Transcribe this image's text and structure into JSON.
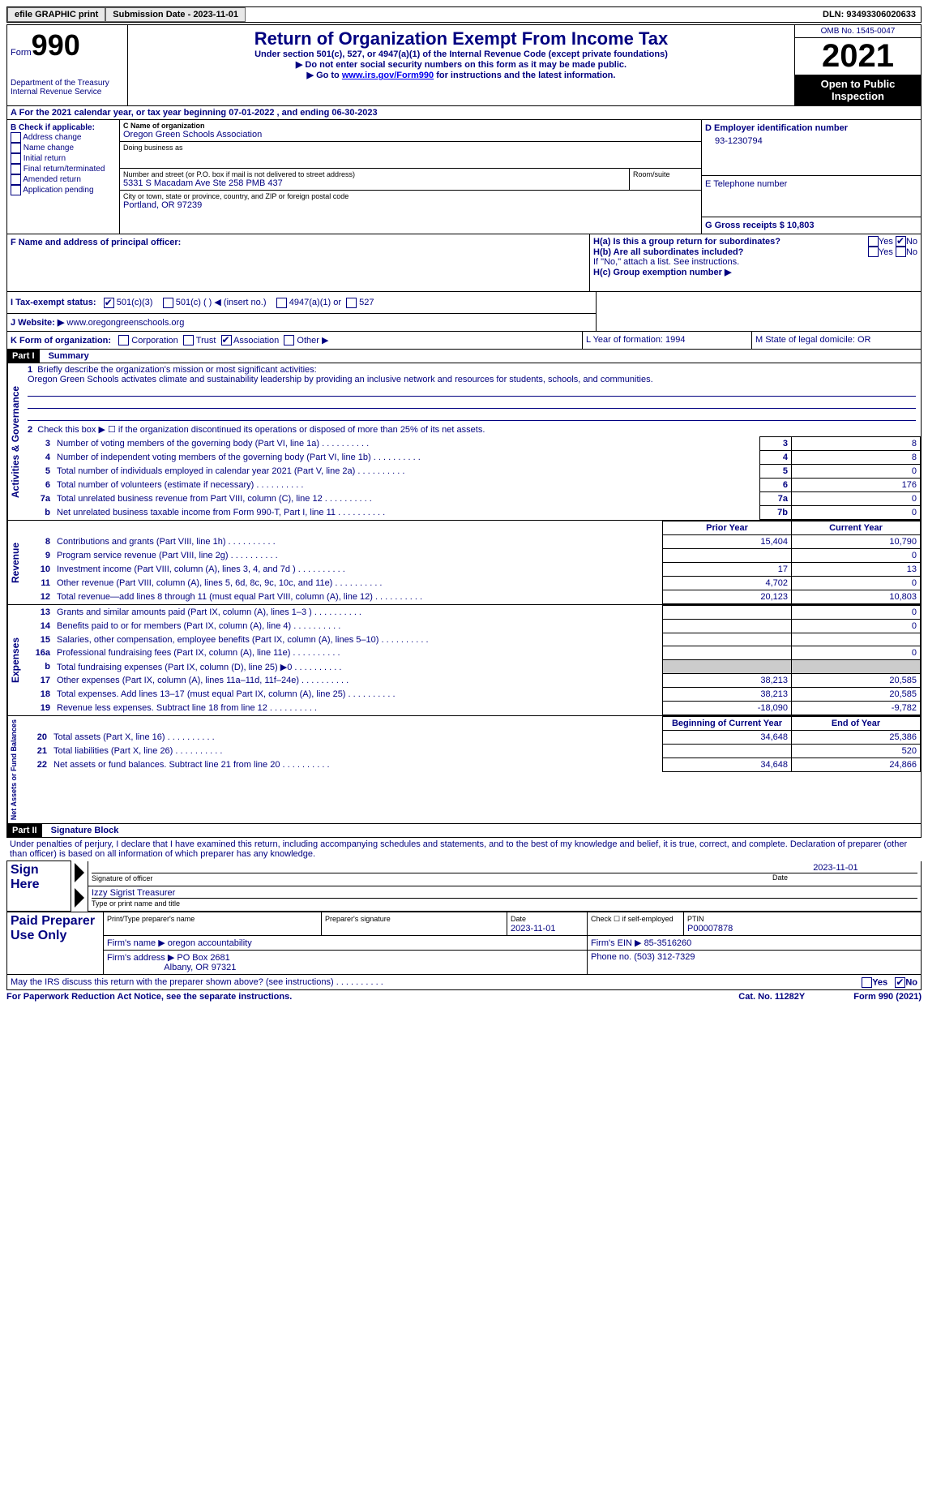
{
  "header": {
    "efile": "efile GRAPHIC print",
    "submission_label": "Submission Date - 2023-11-01",
    "dln_label": "DLN: 93493306020633"
  },
  "form": {
    "form_word": "Form",
    "form_num": "990",
    "title": "Return of Organization Exempt From Income Tax",
    "subtitle": "Under section 501(c), 527, or 4947(a)(1) of the Internal Revenue Code (except private foundations)",
    "note1": "▶ Do not enter social security numbers on this form as it may be made public.",
    "note2_prefix": "▶ Go to ",
    "note2_link": "www.irs.gov/Form990",
    "note2_suffix": " for instructions and the latest information.",
    "dept": "Department of the Treasury Internal Revenue Service",
    "omb": "OMB No. 1545-0047",
    "year": "2021",
    "inspection": "Open to Public Inspection"
  },
  "line_a": "For the 2021 calendar year, or tax year beginning 07-01-2022   , and ending 06-30-2023",
  "box_b": {
    "label": "B Check if applicable:",
    "items": [
      "Address change",
      "Name change",
      "Initial return",
      "Final return/terminated",
      "Amended return",
      "Application pending"
    ]
  },
  "box_c": {
    "label": "C Name of organization",
    "name": "Oregon Green Schools Association",
    "dba_label": "Doing business as",
    "addr_label": "Number and street (or P.O. box if mail is not delivered to street address)",
    "room_label": "Room/suite",
    "addr": "5331 S Macadam Ave Ste 258 PMB 437",
    "city_label": "City or town, state or province, country, and ZIP or foreign postal code",
    "city": "Portland, OR  97239"
  },
  "box_d": {
    "label": "D Employer identification number",
    "value": "93-1230794"
  },
  "box_e": {
    "label": "E Telephone number"
  },
  "box_g": {
    "label": "G Gross receipts $ 10,803"
  },
  "box_f": "F  Name and address of principal officer:",
  "box_h": {
    "ha": "H(a)  Is this a group return for subordinates?",
    "hb": "H(b)  Are all subordinates included?",
    "hb_note": "If \"No,\" attach a list. See instructions.",
    "hc": "H(c)  Group exemption number ▶",
    "yes": "Yes",
    "no": "No"
  },
  "box_i": {
    "label": "I   Tax-exempt status:",
    "opt1": "501(c)(3)",
    "opt2": "501(c) (  ) ◀ (insert no.)",
    "opt3": "4947(a)(1) or",
    "opt4": "527"
  },
  "box_j": {
    "label": "J   Website: ▶",
    "value": "www.oregongreenschools.org"
  },
  "box_k": {
    "label": "K Form of organization:",
    "opts": [
      "Corporation",
      "Trust",
      "Association",
      "Other ▶"
    ]
  },
  "box_l": "L Year of formation: 1994",
  "box_m": "M State of legal domicile: OR",
  "part1": {
    "header": "Part I",
    "title": "Summary",
    "vert1": "Activities & Governance",
    "vert2": "Revenue",
    "vert3": "Expenses",
    "vert4": "Net Assets or Fund Balances",
    "line1_label": "Briefly describe the organization's mission or most significant activities:",
    "line1_text": "Oregon Green Schools activates climate and sustainability leadership by providing an inclusive network and resources for students, schools, and communities.",
    "line2": "Check this box ▶ ☐ if the organization discontinued its operations or disposed of more than 25% of its net assets.",
    "prior_year": "Prior Year",
    "current_year": "Current Year",
    "beg_year": "Beginning of Current Year",
    "end_year": "End of Year",
    "rows_a": [
      {
        "n": "3",
        "label": "Number of voting members of the governing body (Part VI, line 1a)",
        "box": "3",
        "val": "8"
      },
      {
        "n": "4",
        "label": "Number of independent voting members of the governing body (Part VI, line 1b)",
        "box": "4",
        "val": "8"
      },
      {
        "n": "5",
        "label": "Total number of individuals employed in calendar year 2021 (Part V, line 2a)",
        "box": "5",
        "val": "0"
      },
      {
        "n": "6",
        "label": "Total number of volunteers (estimate if necessary)",
        "box": "6",
        "val": "176"
      },
      {
        "n": "7a",
        "label": "Total unrelated business revenue from Part VIII, column (C), line 12",
        "box": "7a",
        "val": "0"
      },
      {
        "n": "b",
        "label": "Net unrelated business taxable income from Form 990-T, Part I, line 11",
        "box": "7b",
        "val": "0"
      }
    ],
    "rows_rev": [
      {
        "n": "8",
        "label": "Contributions and grants (Part VIII, line 1h)",
        "py": "15,404",
        "cy": "10,790"
      },
      {
        "n": "9",
        "label": "Program service revenue (Part VIII, line 2g)",
        "py": "",
        "cy": "0"
      },
      {
        "n": "10",
        "label": "Investment income (Part VIII, column (A), lines 3, 4, and 7d )",
        "py": "17",
        "cy": "13"
      },
      {
        "n": "11",
        "label": "Other revenue (Part VIII, column (A), lines 5, 6d, 8c, 9c, 10c, and 11e)",
        "py": "4,702",
        "cy": "0"
      },
      {
        "n": "12",
        "label": "Total revenue—add lines 8 through 11 (must equal Part VIII, column (A), line 12)",
        "py": "20,123",
        "cy": "10,803"
      }
    ],
    "rows_exp": [
      {
        "n": "13",
        "label": "Grants and similar amounts paid (Part IX, column (A), lines 1–3 )",
        "py": "",
        "cy": "0"
      },
      {
        "n": "14",
        "label": "Benefits paid to or for members (Part IX, column (A), line 4)",
        "py": "",
        "cy": "0"
      },
      {
        "n": "15",
        "label": "Salaries, other compensation, employee benefits (Part IX, column (A), lines 5–10)",
        "py": "",
        "cy": ""
      },
      {
        "n": "16a",
        "label": "Professional fundraising fees (Part IX, column (A), line 11e)",
        "py": "",
        "cy": "0"
      },
      {
        "n": "b",
        "label": "Total fundraising expenses (Part IX, column (D), line 25) ▶0",
        "py": "GRAY",
        "cy": "GRAY"
      },
      {
        "n": "17",
        "label": "Other expenses (Part IX, column (A), lines 11a–11d, 11f–24e)",
        "py": "38,213",
        "cy": "20,585"
      },
      {
        "n": "18",
        "label": "Total expenses. Add lines 13–17 (must equal Part IX, column (A), line 25)",
        "py": "38,213",
        "cy": "20,585"
      },
      {
        "n": "19",
        "label": "Revenue less expenses. Subtract line 18 from line 12",
        "py": "-18,090",
        "cy": "-9,782"
      }
    ],
    "rows_net": [
      {
        "n": "20",
        "label": "Total assets (Part X, line 16)",
        "py": "34,648",
        "cy": "25,386"
      },
      {
        "n": "21",
        "label": "Total liabilities (Part X, line 26)",
        "py": "",
        "cy": "520"
      },
      {
        "n": "22",
        "label": "Net assets or fund balances. Subtract line 21 from line 20",
        "py": "34,648",
        "cy": "24,866"
      }
    ]
  },
  "part2": {
    "header": "Part II",
    "title": "Signature Block",
    "declaration": "Under penalties of perjury, I declare that I have examined this return, including accompanying schedules and statements, and to the best of my knowledge and belief, it is true, correct, and complete. Declaration of preparer (other than officer) is based on all information of which preparer has any knowledge.",
    "sign_here": "Sign Here",
    "sig_date": "2023-11-01",
    "sig_officer_label": "Signature of officer",
    "date_label": "Date",
    "officer_name": "Izzy Sigrist Treasurer",
    "type_name_label": "Type or print name and title",
    "paid_prep": "Paid Preparer Use Only",
    "prep_name_label": "Print/Type preparer's name",
    "prep_sig_label": "Preparer's signature",
    "prep_date_label": "Date",
    "prep_date": "2023-11-01",
    "check_if": "Check ☐ if self-employed",
    "ptin_label": "PTIN",
    "ptin": "P00007878",
    "firm_name_label": "Firm's name    ▶",
    "firm_name": "oregon accountability",
    "firm_ein_label": "Firm's EIN ▶",
    "firm_ein": "85-3516260",
    "firm_addr_label": "Firm's address ▶",
    "firm_addr1": "PO Box 2681",
    "firm_addr2": "Albany, OR  97321",
    "phone_label": "Phone no.",
    "phone": "(503) 312-7329",
    "discuss": "May the IRS discuss this return with the preparer shown above? (see instructions)",
    "yes": "Yes",
    "no": "No"
  },
  "footer": {
    "pra": "For Paperwork Reduction Act Notice, see the separate instructions.",
    "cat": "Cat. No. 11282Y",
    "form": "Form 990 (2021)"
  }
}
